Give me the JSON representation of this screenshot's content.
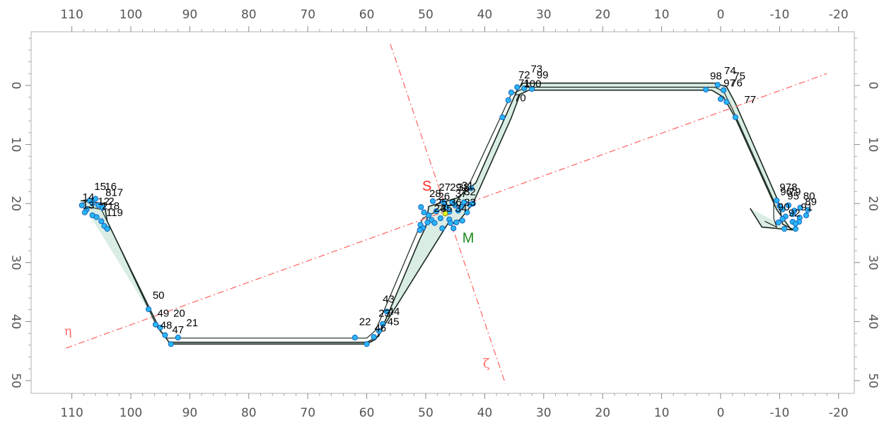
{
  "chart_data": {
    "type": "scatter",
    "title": "",
    "xlabel": "",
    "ylabel": "",
    "xlim": [
      115,
      -22
    ],
    "ylim": [
      -9.5,
      52
    ],
    "x_ticks": [
      110,
      100,
      90,
      80,
      70,
      60,
      50,
      40,
      30,
      20,
      10,
      0,
      -10,
      -20
    ],
    "y_ticks": [
      0,
      10,
      20,
      30,
      40,
      50
    ],
    "colors": {
      "band_fill": "#d9ede4",
      "band_edge": "#1a2a20",
      "point_fill": "#29b6f6",
      "point_stroke": "#1565c0",
      "axis_line": "#ff6b6b",
      "s_label": "#ff2a2a",
      "m_label": "#1b8a1b",
      "m_point": "#e6f51a"
    },
    "band_outer": [
      [
        108.5,
        19.5
      ],
      [
        104.5,
        20
      ],
      [
        104,
        23
      ],
      [
        95,
        41.5
      ],
      [
        93.5,
        43.5
      ],
      [
        60,
        43.5
      ],
      [
        58,
        42.5
      ],
      [
        51,
        26
      ],
      [
        50,
        24
      ],
      [
        49.5,
        20.5
      ],
      [
        44.5,
        19
      ],
      [
        41.5,
        16.5
      ],
      [
        34.5,
        0.8
      ],
      [
        33.5,
        -0.4
      ],
      [
        1,
        -0.4
      ],
      [
        -1,
        0.2
      ],
      [
        -2.5,
        3
      ],
      [
        -9.5,
        19
      ],
      [
        -10,
        20.5
      ],
      [
        -10.5,
        23.5
      ],
      [
        -12.5,
        24.5
      ],
      [
        -7,
        24
      ],
      [
        -5,
        20.8
      ]
    ],
    "band_inner": [
      [
        107.5,
        20.5
      ],
      [
        105,
        21
      ],
      [
        103.5,
        24
      ],
      [
        95.5,
        41
      ],
      [
        94,
        42.8
      ],
      [
        60,
        42.8
      ],
      [
        58.5,
        41.5
      ],
      [
        51.5,
        25
      ],
      [
        50.5,
        22.5
      ],
      [
        48.5,
        21.5
      ],
      [
        45,
        20
      ],
      [
        42.5,
        16.5
      ],
      [
        35.5,
        1.5
      ],
      [
        33,
        0.3
      ],
      [
        1,
        0.3
      ],
      [
        -0.5,
        1
      ],
      [
        -2,
        4
      ],
      [
        -9,
        19.5
      ],
      [
        -9,
        22.5
      ],
      [
        -9.5,
        24
      ],
      [
        -7.5,
        23
      ]
    ],
    "band_bottom": [
      [
        93.5,
        43.8
      ],
      [
        60,
        43.8
      ],
      [
        58.5,
        43
      ],
      [
        46,
        23
      ],
      [
        45,
        23.5
      ],
      [
        44,
        22.5
      ],
      [
        42,
        20
      ],
      [
        35.5,
        5.5
      ],
      [
        34,
        1.5
      ],
      [
        32.5,
        0.8
      ],
      [
        1.5,
        0.8
      ],
      [
        -0.5,
        2
      ],
      [
        -2.5,
        5.5
      ],
      [
        -9.5,
        21
      ],
      [
        -12,
        24.5
      ]
    ],
    "points": [
      [
        108.3,
        20.3
      ],
      [
        107,
        19.5
      ],
      [
        106.5,
        20
      ],
      [
        106,
        19.2
      ],
      [
        105.5,
        20.3
      ],
      [
        104.8,
        20.7
      ],
      [
        107.5,
        21
      ],
      [
        106.5,
        22
      ],
      [
        105.8,
        22.3
      ],
      [
        107.8,
        21.5
      ],
      [
        105,
        23
      ],
      [
        104.5,
        23.8
      ],
      [
        104,
        24.3
      ],
      [
        97,
        37.9
      ],
      [
        95.8,
        40.5
      ],
      [
        95,
        41
      ],
      [
        94.2,
        42.3
      ],
      [
        93.2,
        43.8
      ],
      [
        92,
        42.7
      ],
      [
        62,
        42.7
      ],
      [
        60,
        43.8
      ],
      [
        58.8,
        42.6
      ],
      [
        57.9,
        41.6
      ],
      [
        57.3,
        40.4
      ],
      [
        56.6,
        38.3
      ],
      [
        50.8,
        20.6
      ],
      [
        50.3,
        21.5
      ],
      [
        49.5,
        22
      ],
      [
        49,
        22.8
      ],
      [
        48.2,
        21.3
      ],
      [
        48.8,
        19.6
      ],
      [
        49.7,
        23.2
      ],
      [
        50.5,
        24.1
      ],
      [
        51,
        24.5
      ],
      [
        50.9,
        23.6
      ],
      [
        47,
        19.8
      ],
      [
        46.5,
        20.6
      ],
      [
        46,
        21.4
      ],
      [
        45.5,
        19.8
      ],
      [
        45,
        20.3
      ],
      [
        44.5,
        21.2
      ],
      [
        44,
        20.6
      ],
      [
        43.5,
        19.8
      ],
      [
        43,
        21.5
      ],
      [
        42.5,
        20.2
      ],
      [
        42,
        20
      ],
      [
        47.5,
        22.5
      ],
      [
        46,
        22.7
      ],
      [
        44.8,
        23.2
      ],
      [
        43.8,
        22.9
      ],
      [
        48.5,
        23.3
      ],
      [
        47.2,
        24.2
      ],
      [
        45.3,
        24.2
      ],
      [
        45.8,
        23.3
      ],
      [
        42.3,
        17.4
      ],
      [
        37,
        5.4
      ],
      [
        36,
        2.5
      ],
      [
        35.5,
        1.2
      ],
      [
        34.5,
        0.3
      ],
      [
        33.3,
        0.5
      ],
      [
        32,
        0.6
      ],
      [
        2.5,
        0.7
      ],
      [
        0.5,
        -0.1
      ],
      [
        -0.5,
        0.8
      ],
      [
        0,
        2.3
      ],
      [
        -1,
        2.8
      ],
      [
        -2.5,
        5.4
      ],
      [
        -9.5,
        19.5
      ],
      [
        -10,
        20.4
      ],
      [
        -10.5,
        21
      ],
      [
        -11.5,
        20.3
      ],
      [
        -12.5,
        21.2
      ],
      [
        -13.5,
        20.7
      ],
      [
        -14.8,
        21.1
      ],
      [
        -14.5,
        22
      ],
      [
        -13.4,
        22.4
      ],
      [
        -12.2,
        23.1
      ],
      [
        -11,
        22.2
      ],
      [
        -12.2,
        21.8
      ],
      [
        -9.8,
        23.2
      ],
      [
        -10.8,
        24.3
      ],
      [
        -12.7,
        24.3
      ],
      [
        -13.3,
        23.1
      ],
      [
        -10.5,
        22.6
      ],
      [
        -12.7,
        23.4
      ]
    ],
    "m_point": [
      46.7,
      21.7
    ],
    "point_labels": [
      {
        "text": "15",
        "x": 106.2,
        "y": 17.7
      },
      {
        "text": "16",
        "x": 104.4,
        "y": 17.7
      },
      {
        "text": "14",
        "x": 108.2,
        "y": 19.5
      },
      {
        "text": "817",
        "x": 104.3,
        "y": 18.7
      },
      {
        "text": "13",
        "x": 108.2,
        "y": 20.9
      },
      {
        "text": "12",
        "x": 105.6,
        "y": 20.2
      },
      {
        "text": "2",
        "x": 103.8,
        "y": 20.2
      },
      {
        "text": "218",
        "x": 104.9,
        "y": 21
      },
      {
        "text": "119",
        "x": 104.2,
        "y": 22.1
      },
      {
        "text": "50",
        "x": 96.3,
        "y": 36.1
      },
      {
        "text": "49",
        "x": 95.5,
        "y": 39.2
      },
      {
        "text": "20",
        "x": 92.8,
        "y": 39.2
      },
      {
        "text": "48",
        "x": 95,
        "y": 41.2
      },
      {
        "text": "21",
        "x": 90.6,
        "y": 40.8
      },
      {
        "text": "47",
        "x": 93,
        "y": 42
      },
      {
        "text": "43",
        "x": 57.3,
        "y": 36.8
      },
      {
        "text": "23",
        "x": 58,
        "y": 39.2
      },
      {
        "text": "44",
        "x": 56.4,
        "y": 38.9
      },
      {
        "text": "22",
        "x": 61.3,
        "y": 40.6
      },
      {
        "text": "45",
        "x": 56.5,
        "y": 40.6
      },
      {
        "text": "46",
        "x": 58.7,
        "y": 41.7
      },
      {
        "text": "27",
        "x": 47.8,
        "y": 17.8
      },
      {
        "text": "28",
        "x": 49.4,
        "y": 18.9
      },
      {
        "text": "29",
        "x": 45.9,
        "y": 17.8
      },
      {
        "text": "38",
        "x": 44.6,
        "y": 17.8
      },
      {
        "text": "31",
        "x": 43.9,
        "y": 17.5
      },
      {
        "text": "26",
        "x": 47.9,
        "y": 19.4
      },
      {
        "text": "37",
        "x": 45,
        "y": 18.9
      },
      {
        "text": "32",
        "x": 43.5,
        "y": 18.6
      },
      {
        "text": "25",
        "x": 48.3,
        "y": 20.4
      },
      {
        "text": "36",
        "x": 45.9,
        "y": 20.4
      },
      {
        "text": "33",
        "x": 43.5,
        "y": 20.4
      },
      {
        "text": "24",
        "x": 48.6,
        "y": 21.4
      },
      {
        "text": "35",
        "x": 47.5,
        "y": 21.4
      },
      {
        "text": "34",
        "x": 45,
        "y": 21.4
      },
      {
        "text": "73",
        "x": 32.2,
        "y": -2.2
      },
      {
        "text": "72",
        "x": 34.3,
        "y": -1.2
      },
      {
        "text": "99",
        "x": 31.2,
        "y": -1.2
      },
      {
        "text": "71",
        "x": 34.3,
        "y": 0.2
      },
      {
        "text": "100",
        "x": 33.4,
        "y": 0.3
      },
      {
        "text": "70",
        "x": 35,
        "y": 2.7
      },
      {
        "text": "74",
        "x": -0.6,
        "y": -1.9
      },
      {
        "text": "98",
        "x": 1.8,
        "y": -1
      },
      {
        "text": "75",
        "x": -2.2,
        "y": -1
      },
      {
        "text": "97",
        "x": -0.5,
        "y": 0.2
      },
      {
        "text": "76",
        "x": -1.7,
        "y": 0.2
      },
      {
        "text": "77",
        "x": -4,
        "y": 3
      },
      {
        "text": "9",
        "x": -10,
        "y": 17.8
      },
      {
        "text": "78",
        "x": -11,
        "y": 17.8
      },
      {
        "text": "96",
        "x": -10.1,
        "y": 18.6
      },
      {
        "text": "79",
        "x": -11.6,
        "y": 18.6
      },
      {
        "text": "95",
        "x": -11.3,
        "y": 19.3
      },
      {
        "text": "80",
        "x": -14,
        "y": 19.3
      },
      {
        "text": "89",
        "x": -14.3,
        "y": 20.3
      },
      {
        "text": "90",
        "x": -9.7,
        "y": 21.2
      },
      {
        "text": "91",
        "x": -13.6,
        "y": 21.2
      },
      {
        "text": "92",
        "x": -11.5,
        "y": 22.2
      }
    ],
    "axis_lines": [
      {
        "label": "η",
        "start": [
          111,
          44.5
        ],
        "end": [
          -18,
          -2
        ]
      },
      {
        "label": "ζ",
        "start": [
          56,
          -7
        ],
        "end": [
          36.5,
          50.5
        ]
      }
    ],
    "eta_label_pos": [
      111.3,
      42.3
    ],
    "zeta_label_pos": [
      40.3,
      47.8
    ],
    "markers": [
      {
        "text": "S",
        "x": 50.6,
        "y": 17.8
      },
      {
        "text": "M",
        "x": 43.8,
        "y": 26.6
      }
    ]
  }
}
